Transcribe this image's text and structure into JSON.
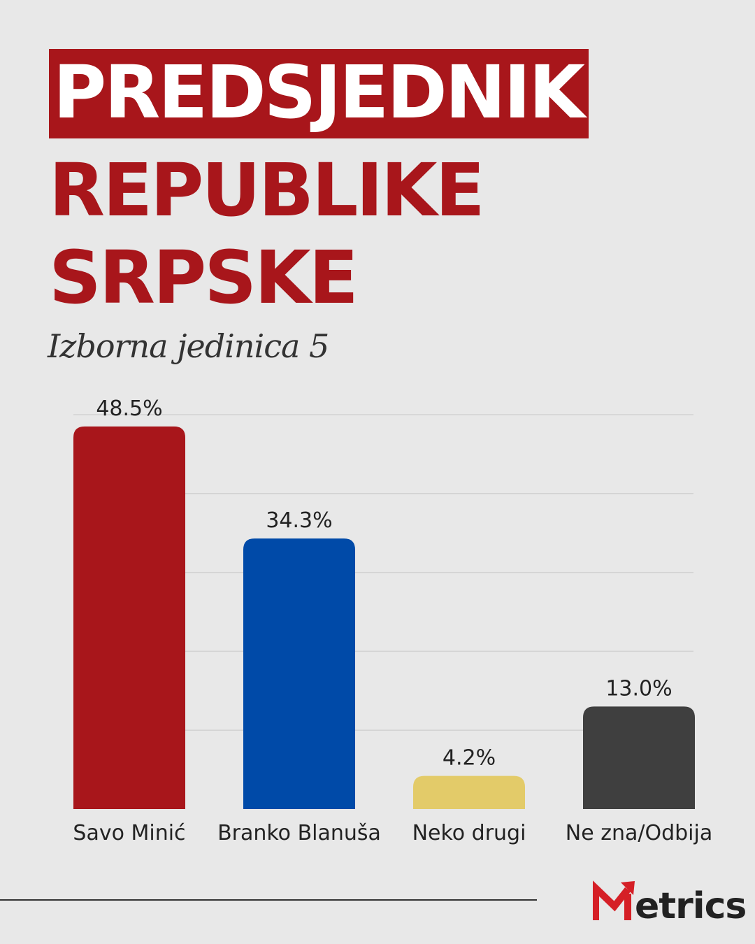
{
  "title": {
    "line1": "PREDSJEDNIK",
    "line2": "REPUBLIKE",
    "line3": "SRPSKE"
  },
  "subtitle": "Izborna jedinica 5",
  "logo": {
    "text": "etrics",
    "brand_color": "#d51f26"
  },
  "colors": {
    "background": "#e8e8e8",
    "accent": "#a8161b",
    "grid": "#d2d2d2"
  },
  "chart_data": {
    "type": "bar",
    "categories": [
      "Savo Minić",
      "Branko Blanuša",
      "Neko drugi",
      "Ne zna/Odbija"
    ],
    "values": [
      48.5,
      34.3,
      4.2,
      13.0
    ],
    "value_labels": [
      "48.5%",
      "34.3%",
      "4.2%",
      "13.0%"
    ],
    "colors": [
      "#a8161b",
      "#004aa8",
      "#e3cb69",
      "#3f3f3f"
    ],
    "ylim": [
      0,
      50
    ],
    "grid": true,
    "unit": "%"
  }
}
